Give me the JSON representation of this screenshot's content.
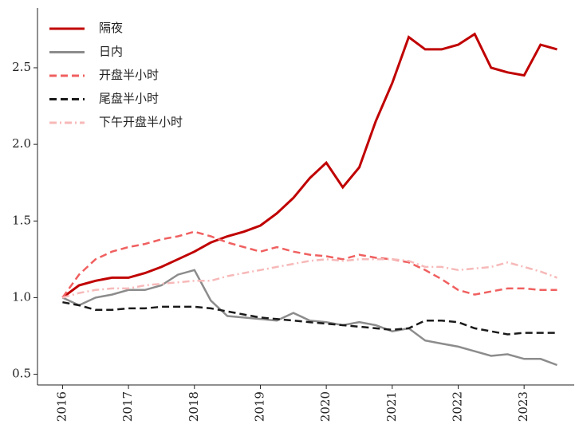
{
  "chart_data": {
    "type": "line",
    "x": [
      2016,
      2016.25,
      2016.5,
      2016.75,
      2017,
      2017.25,
      2017.5,
      2017.75,
      2018,
      2018.25,
      2018.5,
      2018.75,
      2019,
      2019.25,
      2019.5,
      2019.75,
      2020,
      2020.25,
      2020.5,
      2020.75,
      2021,
      2021.25,
      2021.5,
      2021.75,
      2022,
      2022.25,
      2022.5,
      2022.75,
      2023,
      2023.25,
      2023.5
    ],
    "series": [
      {
        "name": "隔夜",
        "color": "#c00000",
        "linestyle": "solid",
        "values": [
          1.0,
          1.08,
          1.11,
          1.13,
          1.13,
          1.16,
          1.2,
          1.25,
          1.3,
          1.36,
          1.4,
          1.43,
          1.47,
          1.55,
          1.65,
          1.78,
          1.88,
          1.72,
          1.85,
          2.15,
          2.4,
          2.7,
          2.62,
          2.62,
          2.65,
          2.72,
          2.5,
          2.47,
          2.45,
          2.65,
          2.62
        ]
      },
      {
        "name": "日内",
        "color": "#8c8c8c",
        "linestyle": "solid",
        "values": [
          1.0,
          0.95,
          1.0,
          1.02,
          1.05,
          1.05,
          1.08,
          1.15,
          1.18,
          0.98,
          0.88,
          0.87,
          0.86,
          0.85,
          0.9,
          0.85,
          0.84,
          0.82,
          0.84,
          0.82,
          0.78,
          0.8,
          0.72,
          0.7,
          0.68,
          0.65,
          0.62,
          0.63,
          0.6,
          0.6,
          0.56
        ]
      },
      {
        "name": "开盘半小时",
        "color": "#f06060",
        "linestyle": "dashed",
        "values": [
          1.0,
          1.15,
          1.25,
          1.3,
          1.33,
          1.35,
          1.38,
          1.4,
          1.43,
          1.4,
          1.36,
          1.33,
          1.3,
          1.33,
          1.3,
          1.28,
          1.27,
          1.25,
          1.28,
          1.26,
          1.25,
          1.23,
          1.18,
          1.12,
          1.05,
          1.02,
          1.04,
          1.06,
          1.06,
          1.05,
          1.05
        ]
      },
      {
        "name": "尾盘半小时",
        "color": "#1a1a1a",
        "linestyle": "dashed",
        "values": [
          0.97,
          0.95,
          0.92,
          0.92,
          0.93,
          0.93,
          0.94,
          0.94,
          0.94,
          0.93,
          0.91,
          0.89,
          0.87,
          0.86,
          0.85,
          0.84,
          0.83,
          0.82,
          0.81,
          0.8,
          0.79,
          0.8,
          0.85,
          0.85,
          0.84,
          0.8,
          0.78,
          0.76,
          0.77,
          0.77,
          0.77
        ]
      },
      {
        "name": "下午开盘半小时",
        "color": "#f7b9b9",
        "linestyle": "dashdot",
        "values": [
          1.0,
          1.03,
          1.05,
          1.06,
          1.06,
          1.08,
          1.09,
          1.1,
          1.11,
          1.11,
          1.14,
          1.16,
          1.18,
          1.2,
          1.22,
          1.24,
          1.25,
          1.24,
          1.25,
          1.25,
          1.25,
          1.24,
          1.2,
          1.2,
          1.18,
          1.19,
          1.2,
          1.23,
          1.2,
          1.17,
          1.13
        ]
      }
    ],
    "xlim": [
      2015.62,
      2023.76
    ],
    "xticks": [
      2016,
      2017,
      2018,
      2019,
      2020,
      2021,
      2022,
      2023
    ],
    "ylim": [
      0.43,
      2.89
    ],
    "yticks": [
      0.5,
      {
        "value": 1.0,
        "label": "1.0"
      },
      1.5,
      {
        "value": 2.0,
        "label": "2.0"
      },
      2.5
    ],
    "legend": "upper left",
    "grid": false
  }
}
